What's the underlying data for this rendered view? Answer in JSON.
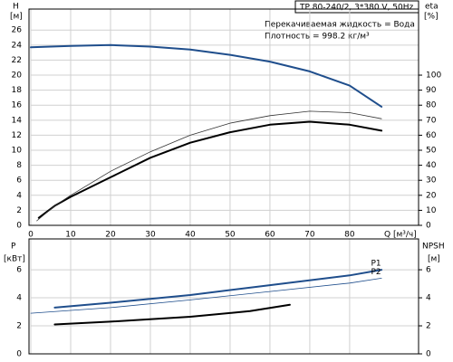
{
  "chart_data": [
    {
      "type": "line",
      "title": "TP 80-240/2, 3*380 V, 50Hz",
      "annotations": [
        "Перекачиваемая жидкость = Вода",
        "Плотность = 998.2 кг/м³"
      ],
      "ylabel": "H",
      "yunit": "[м]",
      "y2label": "eta",
      "y2unit": "[%]",
      "xlabel": "Q [м³/ч]",
      "xlim": [
        0,
        97.3
      ],
      "xticks": [
        0,
        10,
        20,
        30,
        40,
        50,
        60,
        70,
        80
      ],
      "xtick_labels": true,
      "ylim": [
        0,
        28.8
      ],
      "yticks": [
        0,
        2,
        4,
        6,
        8,
        10,
        12,
        14,
        16,
        18,
        20,
        22,
        24,
        26
      ],
      "y2lim": [
        0,
        144
      ],
      "y2ticks": [
        0,
        10,
        20,
        30,
        40,
        50,
        60,
        70,
        80,
        90,
        100
      ],
      "grid": true,
      "series": [
        {
          "color": "#1f4e8c",
          "line_width": 2,
          "axis": "y",
          "x": [
            0,
            10,
            20,
            30,
            40,
            50,
            60,
            70,
            80,
            88
          ],
          "values": [
            23.7,
            23.9,
            24.0,
            23.8,
            23.4,
            22.7,
            21.8,
            20.5,
            18.6,
            15.8
          ]
        },
        {
          "color": "#000000",
          "line_width": 2,
          "axis": "y2",
          "x": [
            2,
            6,
            10,
            20,
            30,
            40,
            50,
            60,
            70,
            80,
            88
          ],
          "values": [
            5,
            13,
            19,
            32,
            45,
            55,
            62,
            67,
            69,
            67,
            63
          ]
        },
        {
          "color": "#333333",
          "line_width": 0.8,
          "axis": "y2",
          "x": [
            1.5,
            6,
            10,
            20,
            30,
            40,
            50,
            60,
            70,
            80,
            88
          ],
          "values": [
            3,
            13,
            20,
            36,
            49,
            60,
            68,
            73,
            76,
            75,
            71
          ]
        }
      ]
    },
    {
      "type": "line",
      "ylabel": "P",
      "yunit": "[кВт]",
      "y2label": "NPSH",
      "y2unit": "[м]",
      "xlim": [
        0,
        97.3
      ],
      "xticks": [
        0,
        10,
        20,
        30,
        40,
        50,
        60,
        70,
        80
      ],
      "xtick_labels": false,
      "ylim": [
        0,
        8.2
      ],
      "yticks": [
        0,
        2,
        4,
        6
      ],
      "y2lim": [
        0,
        8.2
      ],
      "y2ticks": [
        0,
        2,
        4,
        6
      ],
      "grid": true,
      "series": [
        {
          "name": "P1",
          "color": "#1f4e8c",
          "line_width": 2,
          "axis": "y",
          "x": [
            6,
            20,
            40,
            60,
            80,
            88
          ],
          "values": [
            3.3,
            3.65,
            4.2,
            4.9,
            5.6,
            6.0
          ]
        },
        {
          "name": "P2",
          "color": "#1f4e8c",
          "line_width": 0.8,
          "axis": "y",
          "x": [
            0,
            20,
            40,
            60,
            80,
            88
          ],
          "values": [
            2.9,
            3.3,
            3.85,
            4.45,
            5.05,
            5.4
          ]
        },
        {
          "color": "#000000",
          "line_width": 2,
          "axis": "y2",
          "x": [
            6,
            20,
            40,
            55,
            65
          ],
          "values": [
            2.1,
            2.3,
            2.65,
            3.05,
            3.5
          ]
        }
      ]
    }
  ]
}
